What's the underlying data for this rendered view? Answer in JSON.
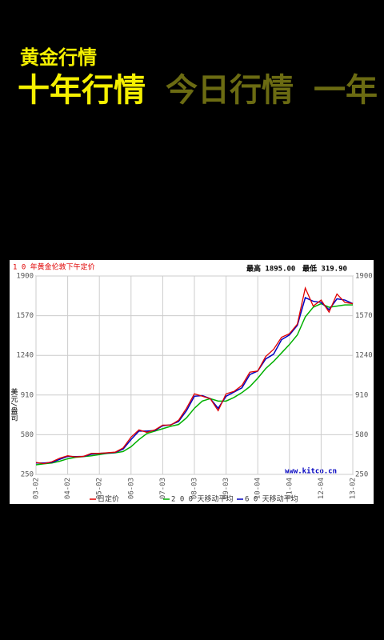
{
  "header": {
    "title": "黄金行情",
    "tabs": [
      "十年行情",
      "今日行情",
      "一年"
    ]
  },
  "chart_data": {
    "type": "line",
    "title": "1 0 年黄金伦敦下午定价",
    "annotations": [
      "最高 1895.00",
      "最低 319.90",
      "www.kitco.cn"
    ],
    "y_label": "美元/盎司",
    "categories": [
      "03-02",
      null,
      null,
      null,
      "04-02",
      null,
      null,
      null,
      "05-02",
      null,
      null,
      null,
      "06-03",
      null,
      null,
      null,
      "07-03",
      null,
      null,
      null,
      "08-03",
      null,
      null,
      null,
      "09-03",
      null,
      null,
      null,
      "10-04",
      null,
      null,
      null,
      "11-04",
      null,
      null,
      null,
      "12-04",
      null,
      null,
      null,
      "13-02"
    ],
    "series": [
      {
        "name": "日定价",
        "color": "#e00000",
        "values": [
          350,
          340,
          355,
          385,
          405,
          395,
          400,
          425,
          425,
          430,
          435,
          470,
          560,
          620,
          600,
          620,
          660,
          660,
          700,
          800,
          920,
          900,
          880,
          780,
          920,
          940,
          990,
          1100,
          1110,
          1230,
          1290,
          1390,
          1420,
          1500,
          1800,
          1650,
          1700,
          1600,
          1750,
          1680,
          1670
        ]
      },
      {
        "name": "2 0 0 天移动平均",
        "color": "#00b000",
        "values": [
          330,
          338,
          345,
          360,
          380,
          392,
          398,
          405,
          415,
          425,
          430,
          440,
          480,
          540,
          590,
          610,
          630,
          650,
          665,
          720,
          800,
          860,
          880,
          860,
          860,
          890,
          930,
          980,
          1050,
          1130,
          1190,
          1260,
          1330,
          1410,
          1560,
          1640,
          1670,
          1640,
          1650,
          1660,
          1660
        ]
      },
      {
        "name": "6 0 天移动平均",
        "color": "#0000c0",
        "values": [
          345,
          345,
          350,
          375,
          400,
          398,
          400,
          418,
          425,
          428,
          433,
          460,
          540,
          610,
          610,
          615,
          655,
          662,
          690,
          780,
          900,
          905,
          880,
          800,
          900,
          935,
          970,
          1080,
          1110,
          1210,
          1250,
          1370,
          1410,
          1490,
          1720,
          1690,
          1680,
          1620,
          1710,
          1700,
          1670
        ]
      }
    ],
    "ylim": [
      250,
      1900
    ],
    "yticks": [
      250,
      580,
      910,
      1240,
      1570,
      1900
    ],
    "grid": true
  }
}
